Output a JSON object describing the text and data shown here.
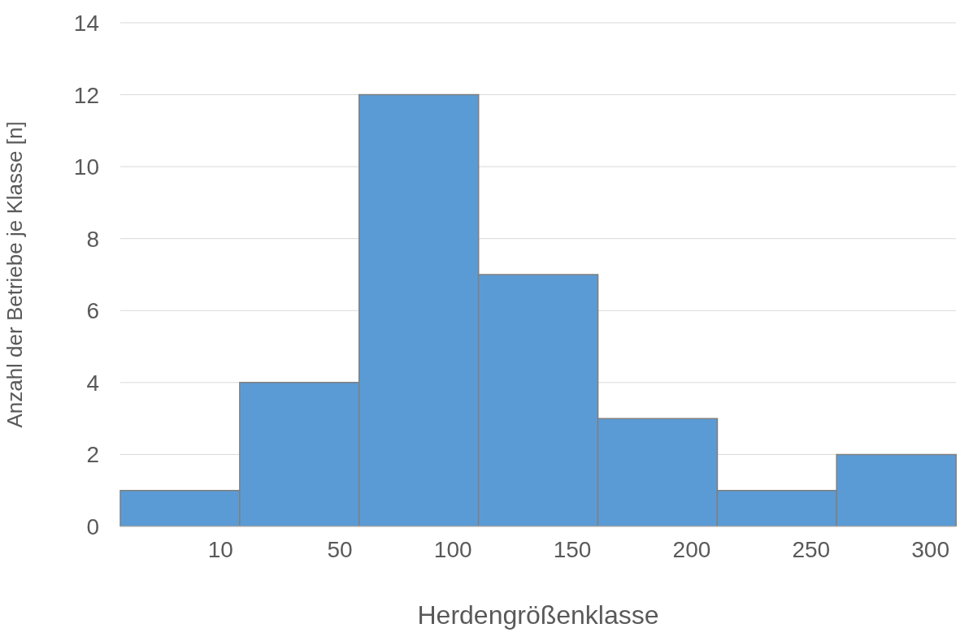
{
  "chart_data": {
    "type": "bar",
    "xlabel": "Herdengrößenklasse",
    "ylabel": "Anzahl der Betriebe je Klasse [n]",
    "categories": [
      "10",
      "50",
      "100",
      "150",
      "200",
      "250",
      "300"
    ],
    "values": [
      1,
      4,
      12,
      7,
      3,
      1,
      2
    ],
    "color": "#5b9bd5",
    "ylim": [
      0,
      14
    ],
    "yticks": [
      0,
      2,
      4,
      6,
      8,
      10,
      12,
      14
    ],
    "grid": "y"
  }
}
